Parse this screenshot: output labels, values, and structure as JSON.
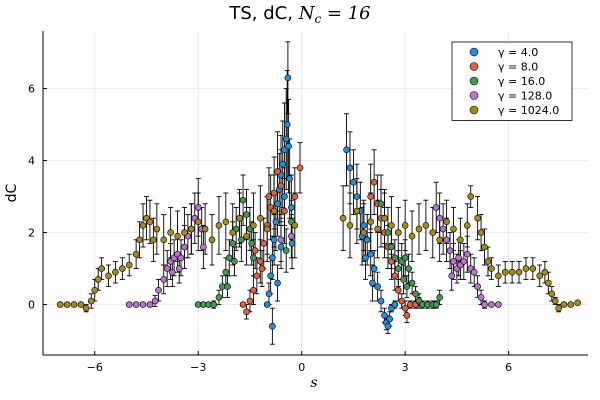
{
  "chart_data": {
    "type": "scatter",
    "title": "TS, dC, ",
    "title_math": "N",
    "title_math_sub": "c",
    "title_math_tail": " = 16",
    "xlabel": "s",
    "ylabel": "dC",
    "xlim": [
      -7.5,
      8.3
    ],
    "ylim": [
      -1.4,
      7.6
    ],
    "xticks": [
      -6,
      -3,
      0,
      3,
      6
    ],
    "yticks": [
      0,
      2,
      4,
      6
    ],
    "grid": true,
    "legend_position": "top-right",
    "error_bars": true,
    "series": [
      {
        "name": "γ = 4.0",
        "color": "#1f8fe0",
        "points": [
          [
            -1.0,
            0.0,
            0.05
          ],
          [
            -0.95,
            0.3,
            0.3
          ],
          [
            -0.9,
            0.8,
            0.5
          ],
          [
            -0.85,
            1.3,
            0.6
          ],
          [
            -0.8,
            1.8,
            0.7
          ],
          [
            -0.75,
            2.3,
            0.8
          ],
          [
            -0.7,
            2.8,
            0.9
          ],
          [
            -0.65,
            3.2,
            1.0
          ],
          [
            -0.6,
            3.6,
            1.1
          ],
          [
            -0.55,
            3.9,
            1.2
          ],
          [
            -0.5,
            4.3,
            1.3
          ],
          [
            -0.45,
            4.6,
            1.4
          ],
          [
            -0.42,
            5.0,
            1.5
          ],
          [
            -0.4,
            6.3,
            1.0
          ],
          [
            -0.38,
            4.4,
            1.3
          ],
          [
            -0.35,
            3.5,
            1.1
          ],
          [
            -0.3,
            2.7,
            0.9
          ],
          [
            -0.28,
            1.7,
            0.7
          ],
          [
            -0.85,
            -0.6,
            0.5
          ],
          [
            -0.7,
            0.6,
            0.5
          ],
          [
            -0.6,
            1.6,
            0.6
          ],
          [
            -0.5,
            3.0,
            0.8
          ],
          [
            1.3,
            4.3,
            1.0
          ],
          [
            1.4,
            3.8,
            1.0
          ],
          [
            1.5,
            3.4,
            0.9
          ],
          [
            1.6,
            3.0,
            0.9
          ],
          [
            1.7,
            2.6,
            0.8
          ],
          [
            1.8,
            2.2,
            0.7
          ],
          [
            1.9,
            1.8,
            0.7
          ],
          [
            2.0,
            1.4,
            0.6
          ],
          [
            2.1,
            1.0,
            0.5
          ],
          [
            2.2,
            0.5,
            0.4
          ],
          [
            2.3,
            0.1,
            0.3
          ],
          [
            2.4,
            -0.3,
            0.2
          ],
          [
            2.45,
            -0.5,
            0.2
          ],
          [
            2.5,
            -0.6,
            0.2
          ],
          [
            2.55,
            -0.4,
            0.2
          ],
          [
            2.6,
            -0.1,
            0.1
          ],
          [
            2.7,
            0.0,
            0.1
          ],
          [
            1.75,
            1.9,
            0.8
          ],
          [
            1.85,
            1.3,
            0.6
          ],
          [
            2.05,
            0.6,
            0.5
          ]
        ]
      },
      {
        "name": "γ = 8.0",
        "color": "#e0613a",
        "points": [
          [
            -1.7,
            0.0,
            0.05
          ],
          [
            -1.6,
            -0.2,
            0.2
          ],
          [
            -1.5,
            0.1,
            0.3
          ],
          [
            -1.4,
            0.4,
            0.4
          ],
          [
            -1.3,
            0.8,
            0.5
          ],
          [
            -1.2,
            1.2,
            0.6
          ],
          [
            -1.1,
            1.7,
            0.7
          ],
          [
            -1.0,
            2.2,
            0.8
          ],
          [
            -0.9,
            2.7,
            0.9
          ],
          [
            -0.8,
            3.1,
            1.0
          ],
          [
            -0.7,
            3.7,
            1.1
          ],
          [
            -0.6,
            3.3,
            1.0
          ],
          [
            -0.5,
            2.6,
            0.9
          ],
          [
            -1.35,
            1.5,
            0.5
          ],
          [
            -1.15,
            1.0,
            0.5
          ],
          [
            -0.95,
            3.0,
            0.8
          ],
          [
            -0.2,
            3.0,
            0.8
          ],
          [
            -0.05,
            3.8,
            0.7
          ],
          [
            2.0,
            3.0,
            0.9
          ],
          [
            2.1,
            3.4,
            0.9
          ],
          [
            2.2,
            2.8,
            0.8
          ],
          [
            2.3,
            2.4,
            0.8
          ],
          [
            2.4,
            2.0,
            0.7
          ],
          [
            2.5,
            1.6,
            0.6
          ],
          [
            2.6,
            1.2,
            0.5
          ],
          [
            2.7,
            0.8,
            0.4
          ],
          [
            2.8,
            0.4,
            0.3
          ],
          [
            2.9,
            0.1,
            0.2
          ],
          [
            3.0,
            -0.1,
            0.2
          ],
          [
            3.05,
            -0.3,
            0.2
          ],
          [
            3.15,
            0.0,
            0.1
          ],
          [
            3.3,
            0.0,
            0.1
          ],
          [
            3.4,
            0.1,
            0.1
          ]
        ]
      },
      {
        "name": "γ = 16.0",
        "color": "#3e9c4f",
        "points": [
          [
            -3.0,
            0.0,
            0.05
          ],
          [
            -2.85,
            0.0,
            0.05
          ],
          [
            -2.7,
            0.0,
            0.05
          ],
          [
            -2.55,
            0.0,
            0.1
          ],
          [
            -2.4,
            0.2,
            0.2
          ],
          [
            -2.3,
            0.5,
            0.3
          ],
          [
            -2.2,
            0.9,
            0.4
          ],
          [
            -2.1,
            1.3,
            0.5
          ],
          [
            -2.0,
            1.7,
            0.6
          ],
          [
            -1.9,
            2.1,
            0.6
          ],
          [
            -1.8,
            2.4,
            0.7
          ],
          [
            -1.7,
            2.9,
            0.7
          ],
          [
            -1.6,
            2.5,
            0.7
          ],
          [
            -1.5,
            2.1,
            0.6
          ],
          [
            -1.45,
            1.7,
            0.6
          ],
          [
            -1.4,
            1.3,
            0.5
          ],
          [
            -2.15,
            0.5,
            0.3
          ],
          [
            -1.95,
            1.2,
            0.4
          ],
          [
            -1.75,
            1.8,
            0.6
          ],
          [
            -0.3,
            2.3,
            0.6
          ],
          [
            -0.45,
            1.5,
            0.6
          ],
          [
            2.3,
            2.8,
            0.8
          ],
          [
            2.4,
            2.4,
            0.7
          ],
          [
            2.5,
            2.0,
            0.7
          ],
          [
            2.6,
            1.6,
            0.6
          ],
          [
            2.7,
            1.3,
            0.5
          ],
          [
            2.8,
            1.0,
            0.5
          ],
          [
            2.9,
            1.2,
            0.5
          ],
          [
            3.0,
            1.3,
            0.5
          ],
          [
            3.1,
            1.0,
            0.4
          ],
          [
            3.2,
            0.6,
            0.3
          ],
          [
            3.3,
            0.3,
            0.2
          ],
          [
            3.4,
            0.1,
            0.2
          ],
          [
            3.5,
            0.0,
            0.1
          ],
          [
            3.65,
            0.0,
            0.1
          ],
          [
            3.8,
            0.0,
            0.1
          ],
          [
            3.9,
            0.0,
            0.1
          ],
          [
            4.0,
            0.2,
            0.2
          ],
          [
            2.95,
            0.7,
            0.4
          ],
          [
            3.05,
            0.5,
            0.3
          ]
        ]
      },
      {
        "name": "γ = 128.0",
        "color": "#b874d0",
        "points": [
          [
            -5.0,
            0.0,
            0.05
          ],
          [
            -4.8,
            0.0,
            0.05
          ],
          [
            -4.6,
            0.0,
            0.05
          ],
          [
            -4.4,
            0.0,
            0.05
          ],
          [
            -4.25,
            0.1,
            0.15
          ],
          [
            -4.15,
            0.4,
            0.3
          ],
          [
            -4.0,
            0.7,
            0.4
          ],
          [
            -3.9,
            1.0,
            0.5
          ],
          [
            -3.8,
            1.2,
            0.5
          ],
          [
            -3.7,
            1.3,
            0.5
          ],
          [
            -3.6,
            1.4,
            0.5
          ],
          [
            -3.5,
            1.3,
            0.5
          ],
          [
            -3.4,
            1.6,
            0.6
          ],
          [
            -3.3,
            1.9,
            0.6
          ],
          [
            -3.2,
            2.1,
            0.7
          ],
          [
            -3.1,
            2.4,
            0.7
          ],
          [
            -3.0,
            2.7,
            0.8
          ],
          [
            -2.9,
            2.1,
            0.6
          ],
          [
            -2.85,
            1.6,
            0.6
          ],
          [
            -3.75,
            0.9,
            0.4
          ],
          [
            -3.55,
            1.0,
            0.4
          ],
          [
            -0.6,
            1.8,
            0.6
          ],
          [
            -0.3,
            1.9,
            0.6
          ],
          [
            3.9,
            2.7,
            0.7
          ],
          [
            4.0,
            2.4,
            0.7
          ],
          [
            4.1,
            2.1,
            0.7
          ],
          [
            4.2,
            1.8,
            0.6
          ],
          [
            4.3,
            1.5,
            0.5
          ],
          [
            4.4,
            1.2,
            0.5
          ],
          [
            4.5,
            1.0,
            0.4
          ],
          [
            4.6,
            1.1,
            0.4
          ],
          [
            4.7,
            1.2,
            0.5
          ],
          [
            4.8,
            1.4,
            0.5
          ],
          [
            4.9,
            1.0,
            0.4
          ],
          [
            5.0,
            0.9,
            0.4
          ],
          [
            5.1,
            0.5,
            0.3
          ],
          [
            5.2,
            0.2,
            0.2
          ],
          [
            5.3,
            0.0,
            0.1
          ],
          [
            5.5,
            0.0,
            0.05
          ],
          [
            5.7,
            0.0,
            0.05
          ],
          [
            4.35,
            0.8,
            0.4
          ],
          [
            4.55,
            1.3,
            0.5
          ]
        ]
      },
      {
        "name": "γ = 1024.0",
        "color": "#a88a17",
        "points": [
          [
            -7.0,
            0.0,
            0.05
          ],
          [
            -6.8,
            0.0,
            0.05
          ],
          [
            -6.6,
            0.0,
            0.05
          ],
          [
            -6.4,
            0.0,
            0.05
          ],
          [
            -6.25,
            -0.1,
            0.1
          ],
          [
            -6.1,
            0.1,
            0.2
          ],
          [
            -6.0,
            0.4,
            0.3
          ],
          [
            -5.9,
            0.7,
            0.3
          ],
          [
            -5.8,
            1.0,
            0.3
          ],
          [
            -5.6,
            0.8,
            0.3
          ],
          [
            -5.4,
            0.9,
            0.3
          ],
          [
            -5.2,
            1.0,
            0.3
          ],
          [
            -5.0,
            1.1,
            0.3
          ],
          [
            -4.8,
            1.4,
            0.4
          ],
          [
            -4.7,
            1.8,
            0.5
          ],
          [
            -4.6,
            2.2,
            0.6
          ],
          [
            -4.5,
            2.4,
            0.6
          ],
          [
            -4.4,
            2.3,
            0.6
          ],
          [
            -4.3,
            1.8,
            0.6
          ],
          [
            -4.2,
            2.1,
            0.7
          ],
          [
            -4.0,
            1.8,
            0.7
          ],
          [
            -3.8,
            2.0,
            0.7
          ],
          [
            -3.6,
            1.9,
            0.7
          ],
          [
            -3.4,
            2.0,
            0.7
          ],
          [
            -3.2,
            2.1,
            0.7
          ],
          [
            -3.0,
            2.3,
            0.8
          ],
          [
            -2.8,
            2.1,
            0.7
          ],
          [
            -2.6,
            1.8,
            0.7
          ],
          [
            -2.4,
            2.2,
            0.8
          ],
          [
            -2.2,
            2.3,
            0.8
          ],
          [
            -2.0,
            2.0,
            0.8
          ],
          [
            -1.8,
            2.4,
            0.8
          ],
          [
            -1.6,
            1.9,
            0.8
          ],
          [
            -1.4,
            2.2,
            0.9
          ],
          [
            -1.2,
            2.4,
            0.9
          ],
          [
            -1.0,
            2.1,
            0.9
          ],
          [
            -0.8,
            2.6,
            1.0
          ],
          [
            -0.2,
            2.2,
            0.9
          ],
          [
            1.2,
            2.4,
            0.9
          ],
          [
            1.4,
            2.2,
            0.9
          ],
          [
            1.6,
            2.6,
            0.9
          ],
          [
            1.8,
            2.0,
            0.8
          ],
          [
            2.0,
            2.3,
            0.8
          ],
          [
            2.2,
            2.1,
            0.8
          ],
          [
            2.4,
            2.4,
            0.8
          ],
          [
            2.6,
            2.2,
            0.8
          ],
          [
            2.8,
            2.0,
            0.7
          ],
          [
            3.0,
            2.2,
            0.7
          ],
          [
            3.2,
            1.9,
            0.7
          ],
          [
            3.4,
            2.1,
            0.7
          ],
          [
            3.6,
            2.2,
            0.7
          ],
          [
            3.8,
            2.0,
            0.7
          ],
          [
            4.0,
            1.8,
            0.6
          ],
          [
            4.2,
            2.3,
            0.6
          ],
          [
            4.4,
            2.1,
            0.6
          ],
          [
            4.6,
            1.8,
            0.6
          ],
          [
            4.8,
            2.2,
            0.6
          ],
          [
            4.9,
            3.0,
            0.3
          ],
          [
            5.1,
            2.4,
            0.6
          ],
          [
            5.2,
            2.0,
            0.5
          ],
          [
            5.3,
            1.6,
            0.5
          ],
          [
            5.4,
            1.2,
            0.4
          ],
          [
            5.5,
            1.0,
            0.3
          ],
          [
            5.7,
            0.8,
            0.3
          ],
          [
            5.9,
            0.9,
            0.3
          ],
          [
            6.1,
            0.9,
            0.3
          ],
          [
            6.3,
            0.9,
            0.3
          ],
          [
            6.5,
            1.0,
            0.3
          ],
          [
            6.7,
            1.0,
            0.3
          ],
          [
            6.9,
            0.8,
            0.3
          ],
          [
            7.05,
            0.9,
            0.3
          ],
          [
            7.15,
            0.6,
            0.3
          ],
          [
            7.25,
            0.3,
            0.2
          ],
          [
            7.35,
            0.1,
            0.1
          ],
          [
            7.45,
            -0.1,
            0.1
          ],
          [
            7.6,
            0.0,
            0.05
          ],
          [
            7.8,
            0.0,
            0.05
          ],
          [
            8.0,
            0.05,
            0.05
          ]
        ]
      }
    ]
  }
}
